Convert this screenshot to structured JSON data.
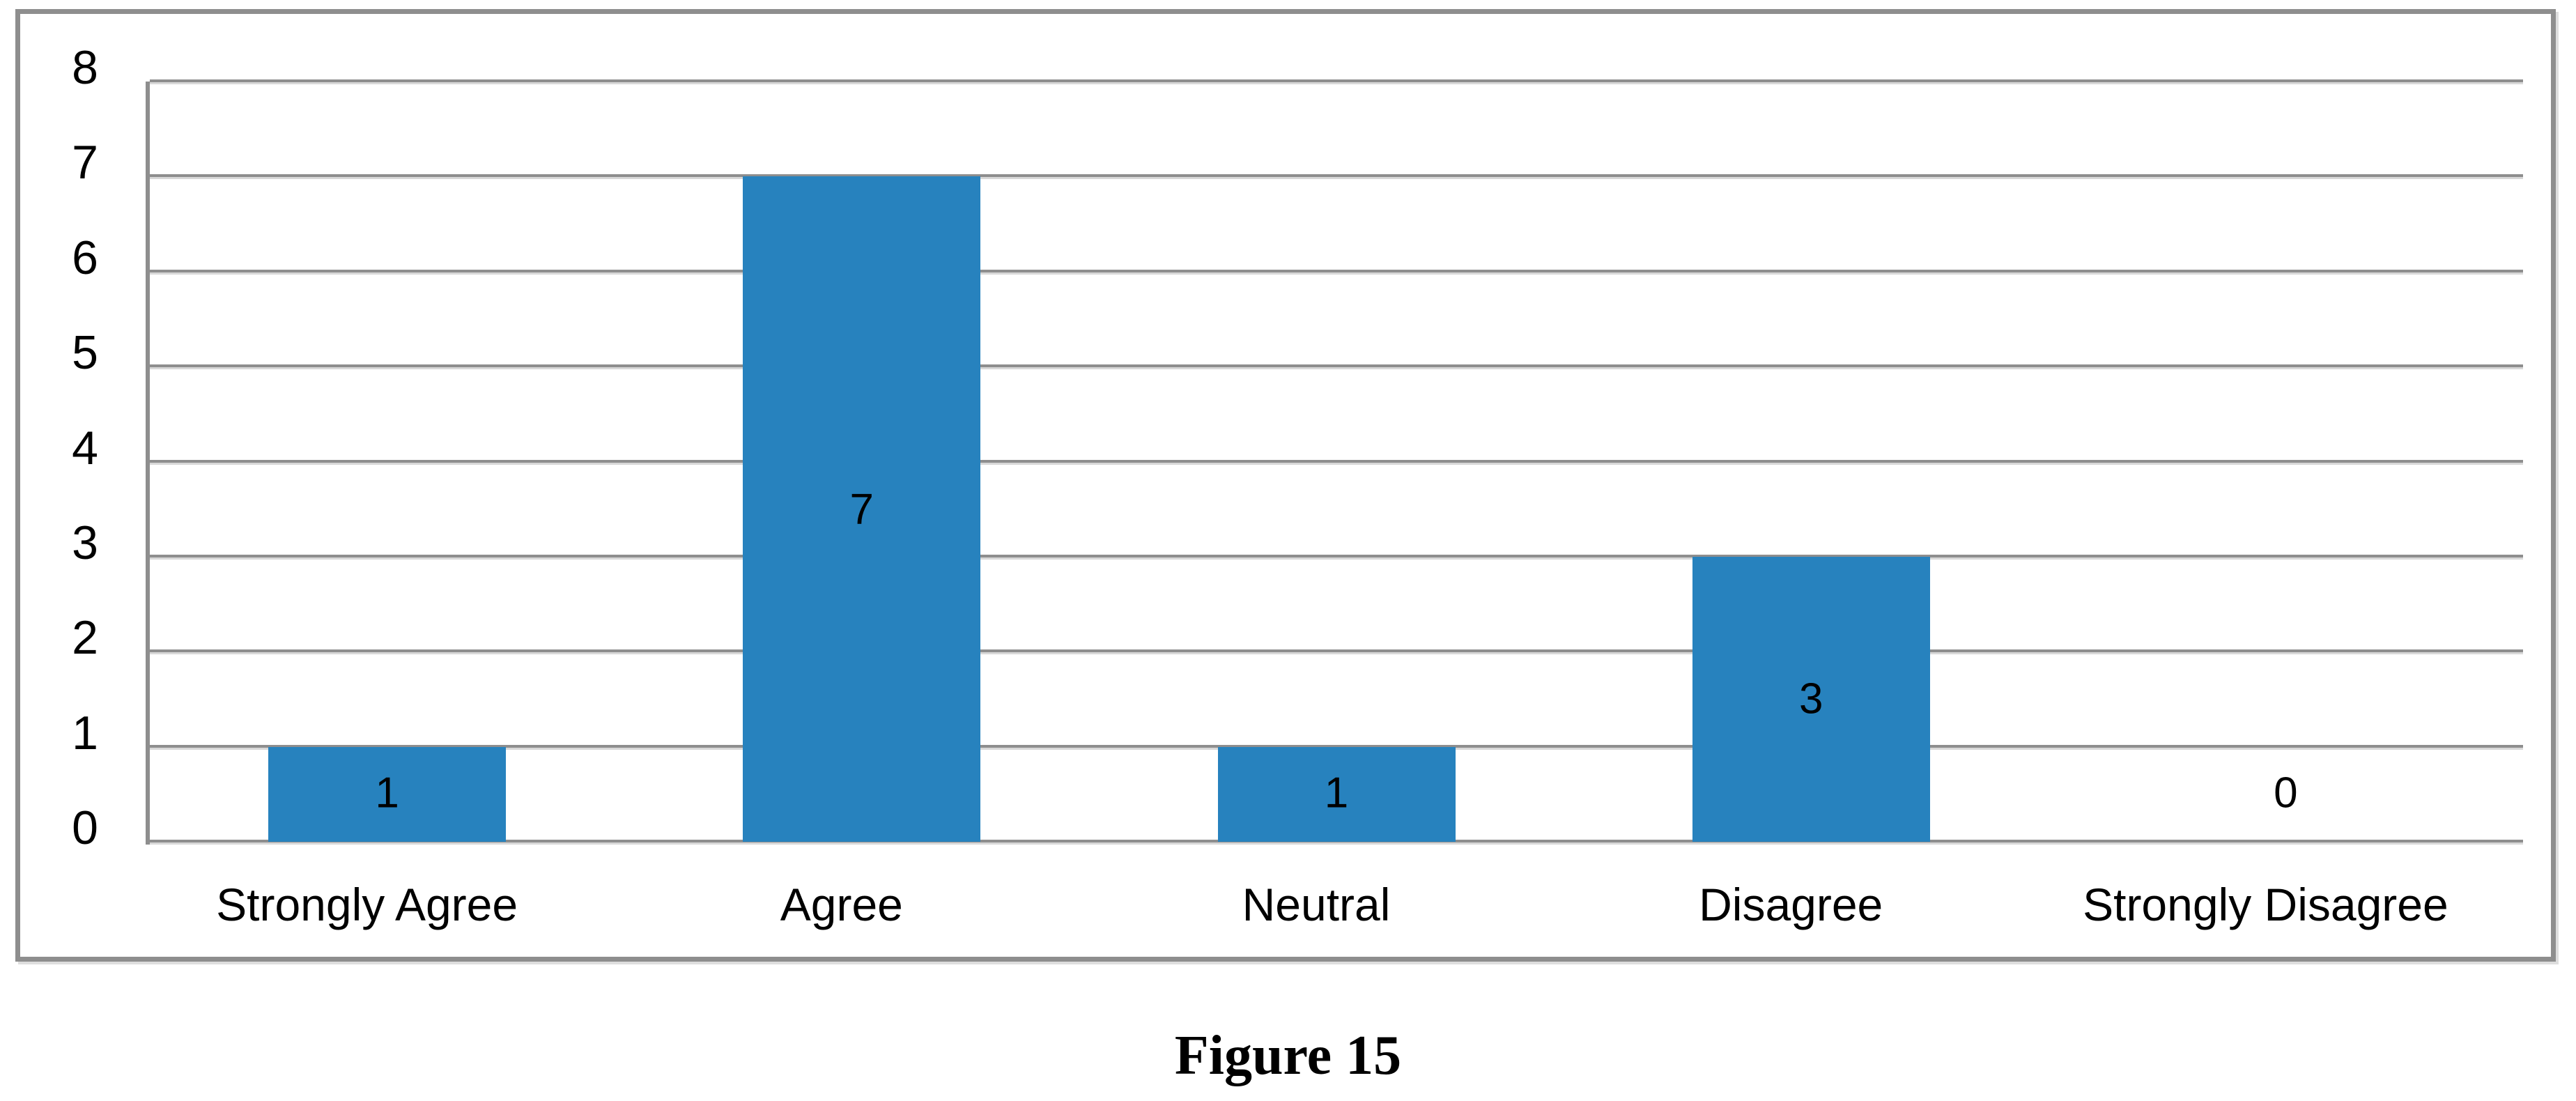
{
  "chart_data": {
    "type": "bar",
    "title": "",
    "xlabel": "",
    "ylabel": "",
    "categories": [
      "Strongly Agree",
      "Agree",
      "Neutral",
      "Disagree",
      "Strongly Disagree"
    ],
    "values": [
      1,
      7,
      1,
      3,
      0
    ],
    "data_labels": [
      "1",
      "7",
      "1",
      "3",
      "0"
    ],
    "y_ticks": [
      "0",
      "1",
      "2",
      "3",
      "4",
      "5",
      "6",
      "7",
      "8"
    ],
    "ylim": [
      0,
      8
    ],
    "grid": "horizontal gridlines on",
    "legend": "none",
    "colors": {
      "bar": "#2782be",
      "gridline": "#8e8e8e",
      "gridline_shadow": "#d8d8d8",
      "chart_border": "#8e8e8e",
      "text": "#000000",
      "background": "#ffffff"
    }
  },
  "caption": "Figure 15"
}
